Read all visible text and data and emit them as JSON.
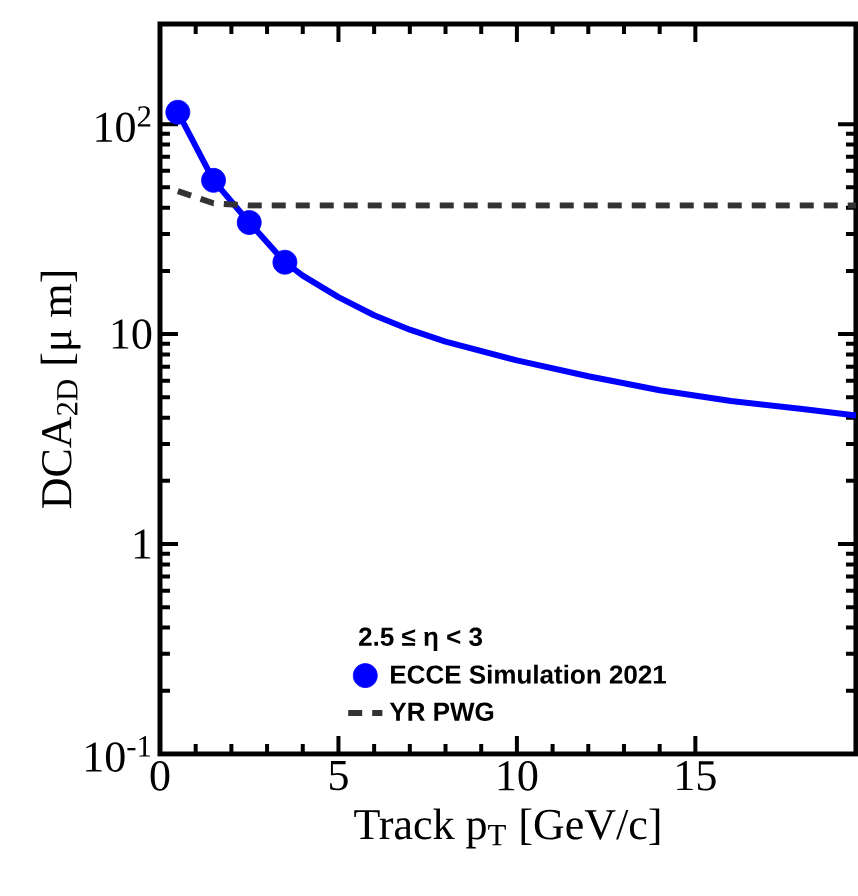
{
  "chart_data": {
    "type": "line",
    "xlabel": "Track p$_{T}$ [GeV/c]",
    "ylabel": "DCA$_{2D}$ [μ m]",
    "legend_title": "2.5 ≤ η < 3",
    "xlim": [
      0,
      19.5
    ],
    "ylim": [
      0.1,
      300
    ],
    "log": "y",
    "xticks": [
      0,
      5,
      10,
      15
    ],
    "yticks": [
      {
        "value": 0.1,
        "label": "10$^{-1}$"
      },
      1,
      10,
      {
        "value": 100,
        "label": "10$^{2}$"
      }
    ],
    "legend": "bottom",
    "grid": false,
    "series": [
      {
        "name": "ECCE Simulation 2021",
        "type": "scatter",
        "marker": "circle",
        "color": "#0000ff",
        "x": [
          0.5,
          1.5,
          2.5,
          3.5
        ],
        "values": [
          114,
          54,
          34,
          22
        ]
      },
      {
        "color": "#0000ff",
        "line_style": "solid",
        "x": [
          0.5,
          1.5,
          2.5,
          3.5,
          4,
          5,
          6,
          7,
          8,
          10,
          12,
          14,
          16,
          18,
          19.5
        ],
        "values": [
          114,
          54,
          34,
          22,
          19,
          15,
          12.3,
          10.5,
          9.2,
          7.5,
          6.3,
          5.4,
          4.8,
          4.4,
          4.1
        ]
      },
      {
        "name": "YR PWG",
        "color": "#333333",
        "line_style": "dashed",
        "x": [
          0.5,
          1.5,
          2.5,
          19.5
        ],
        "values": [
          48,
          42,
          41,
          41
        ]
      }
    ]
  }
}
